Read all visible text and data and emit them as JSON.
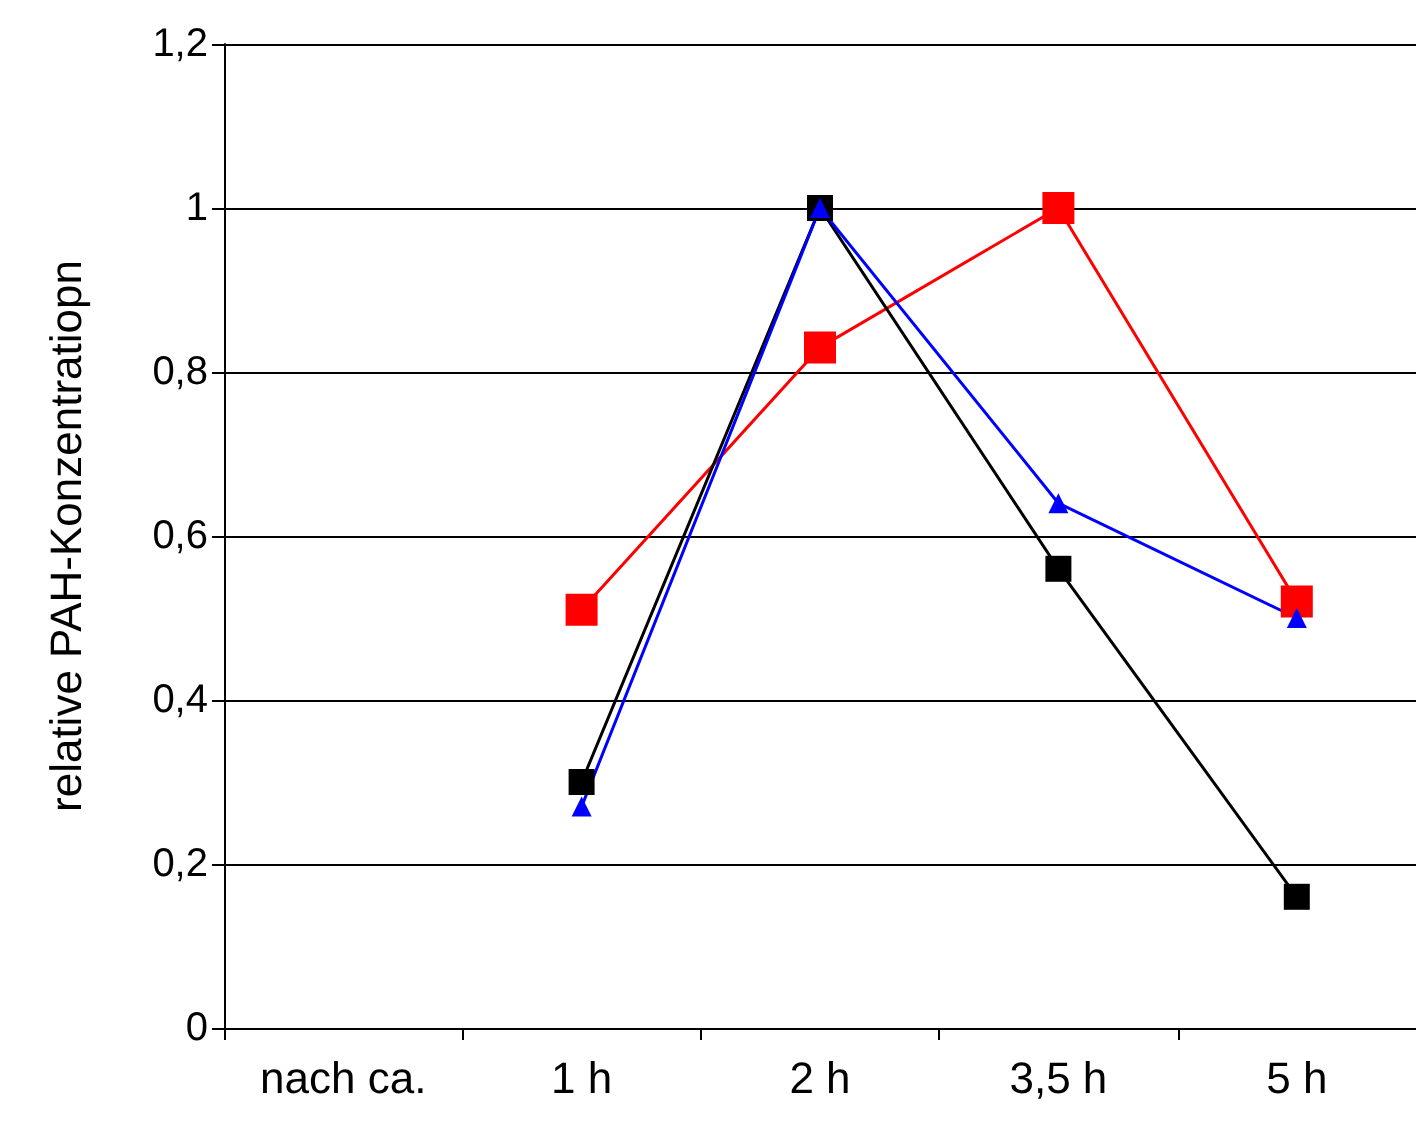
{
  "chart_data": {
    "type": "line",
    "ylabel": "relative PAH-Konzentratiopn",
    "categories": [
      "nach ca.",
      "1 h",
      "2 h",
      "3,5 h",
      "5 h"
    ],
    "series": [
      {
        "color": "#ff0000",
        "marker": "square",
        "values": [
          null,
          0.51,
          0.83,
          1.0,
          0.52
        ]
      },
      {
        "color": "#000000",
        "marker": "square",
        "values": [
          null,
          0.3,
          1.0,
          0.56,
          0.16
        ]
      },
      {
        "color": "#0000ff",
        "marker": "triangle",
        "values": [
          null,
          0.27,
          1.0,
          0.64,
          0.5
        ]
      }
    ],
    "ylim": [
      0,
      1.2
    ],
    "yticks": [
      0,
      {
        "value": 0.2,
        "label": "0,2"
      },
      {
        "value": 0.4,
        "label": "0,4"
      },
      {
        "value": 0.6,
        "label": "0,6"
      },
      {
        "value": 0.8,
        "label": "0,8"
      },
      1,
      {
        "value": 1.2,
        "label": "1,2"
      }
    ],
    "grid": "y",
    "line_style": "solid"
  }
}
